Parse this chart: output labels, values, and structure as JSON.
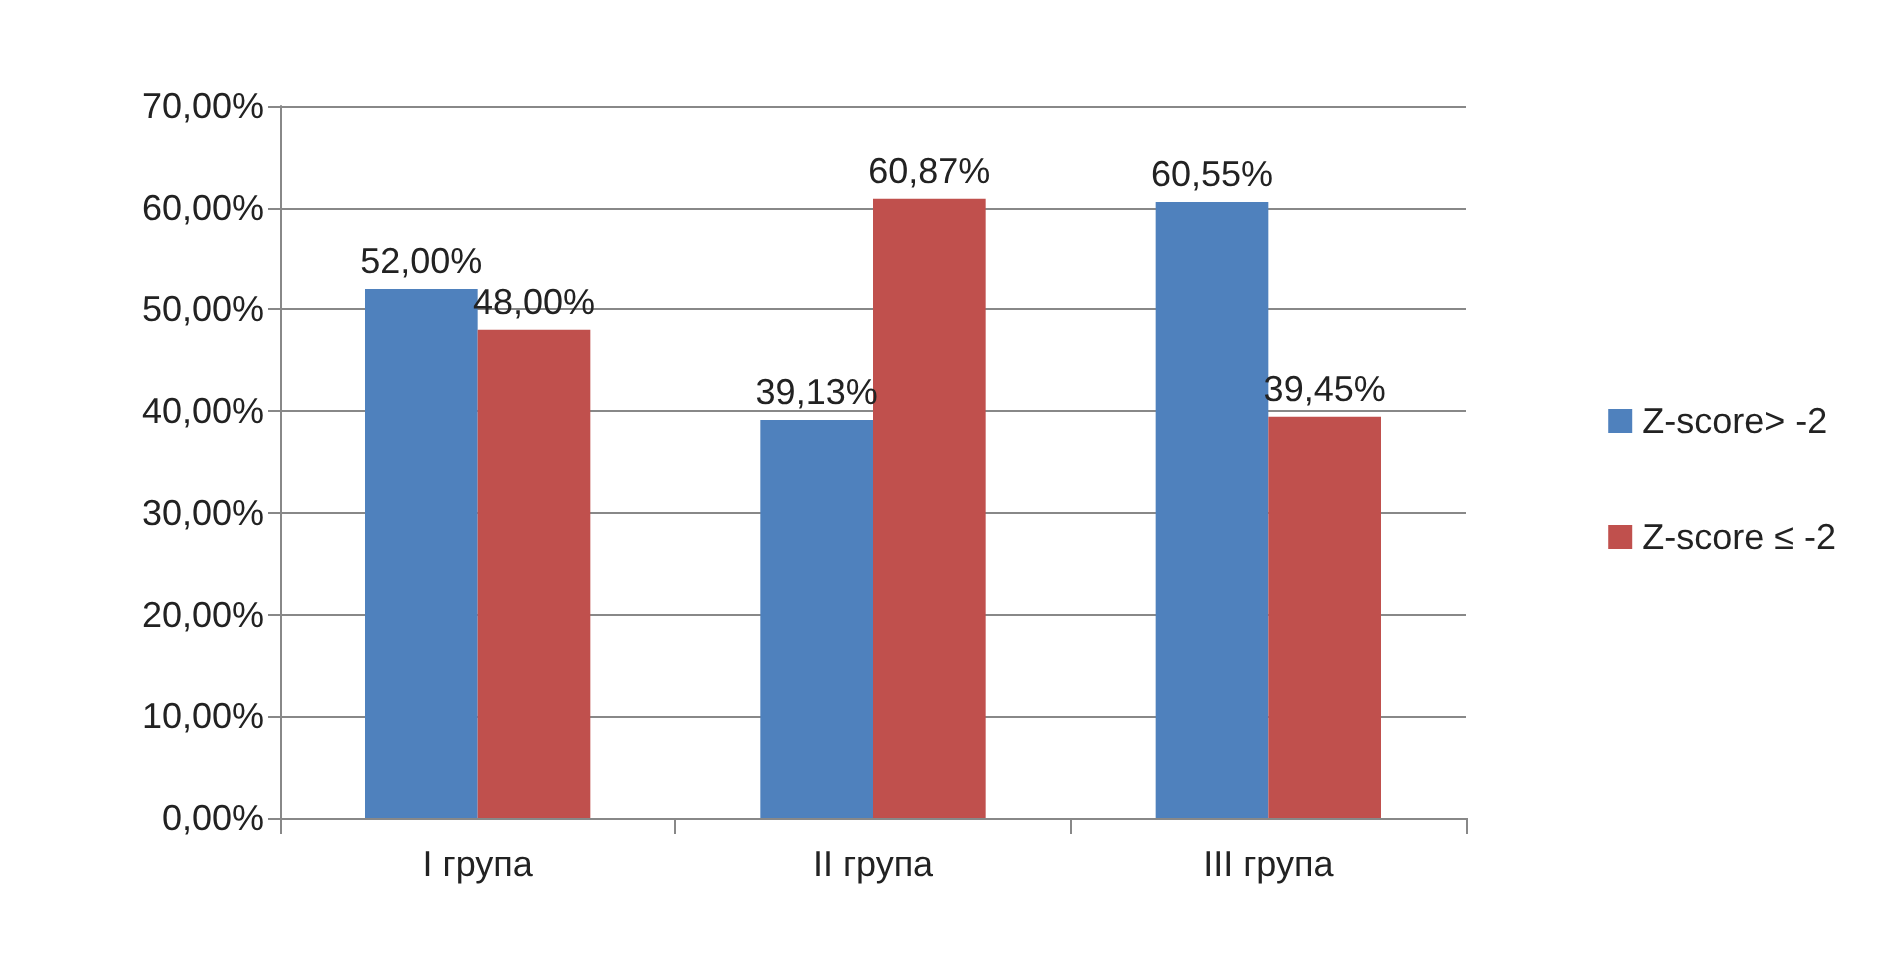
{
  "chart_data": {
    "type": "bar",
    "categories": [
      "I група",
      "II група",
      "III група"
    ],
    "series": [
      {
        "name": "Z-score> -2",
        "color": "#4f81bd",
        "values": [
          52,
          39.13,
          60.55
        ],
        "value_labels": [
          "52,00%",
          "39,13%",
          "60,55%"
        ]
      },
      {
        "name": "Z-score ≤ -2",
        "color": "#c0504d",
        "values": [
          48,
          60.87,
          39.45
        ],
        "value_labels": [
          "48,00%",
          "60,87%",
          "39,45%"
        ]
      }
    ],
    "ylim": [
      0,
      70
    ],
    "yticks": [
      {
        "value": 0,
        "label": "0,00%"
      },
      {
        "value": 10,
        "label": "10,00%"
      },
      {
        "value": 20,
        "label": "20,00%"
      },
      {
        "value": 30,
        "label": "30,00%"
      },
      {
        "value": 40,
        "label": "40,00%"
      },
      {
        "value": 50,
        "label": "50,00%"
      },
      {
        "value": 60,
        "label": "60,00%"
      },
      {
        "value": 70,
        "label": "70,00%"
      }
    ],
    "grid": "y",
    "legend": "right"
  }
}
